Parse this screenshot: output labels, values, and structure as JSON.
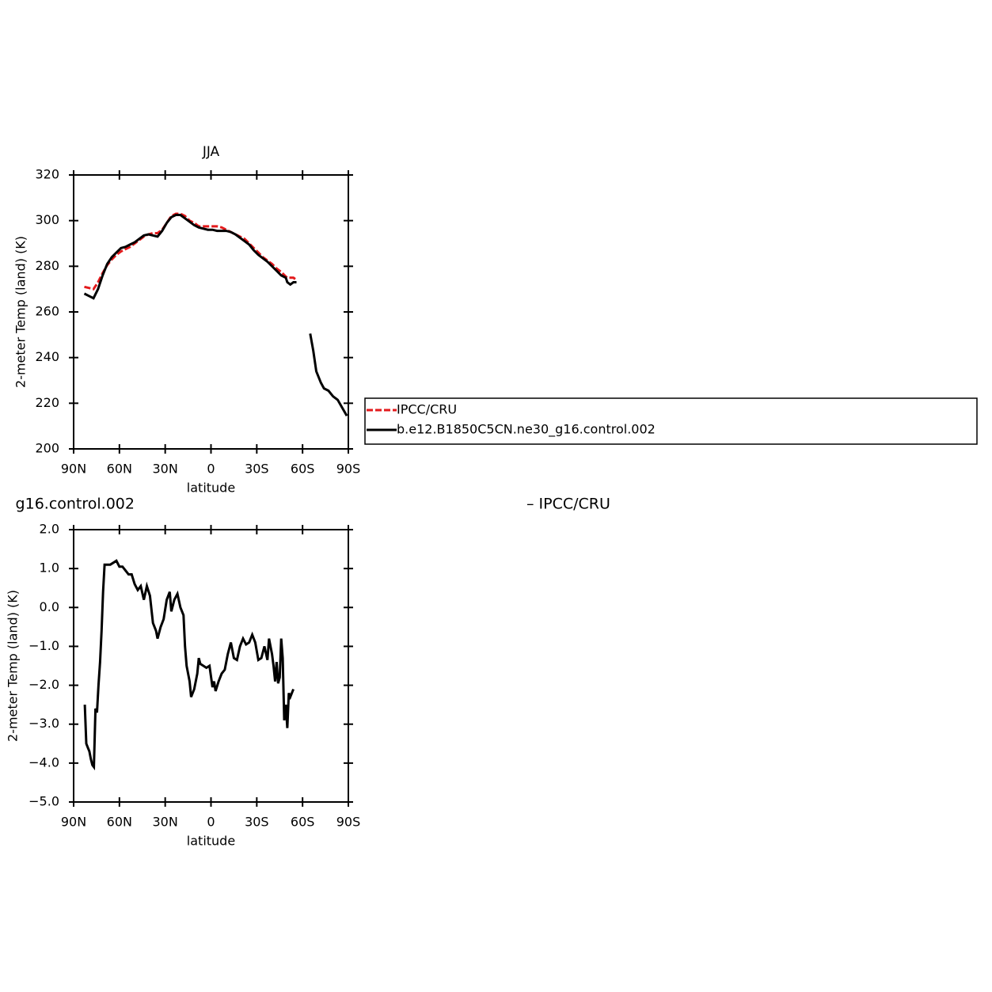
{
  "chart_data": [
    {
      "type": "line",
      "title": "JJA",
      "x_label": "latitude",
      "y_label": "2-meter Temp (land) (K)",
      "x": [
        83,
        80,
        77,
        74,
        71,
        68,
        65,
        62,
        59,
        56,
        53,
        50,
        47,
        44,
        41,
        38,
        35,
        32,
        29,
        26,
        23,
        20,
        17,
        14,
        11,
        8,
        5,
        2,
        -1,
        -4,
        -7,
        -10,
        -13,
        -16,
        -19,
        -22,
        -25,
        -28,
        -31,
        -34,
        -37,
        -40,
        -43,
        -46,
        -49,
        -50,
        -52,
        -54,
        -56,
        -60,
        -65,
        -67,
        -69,
        -72,
        -74,
        -77,
        -80,
        -83,
        -86,
        -89
      ],
      "series": [
        {
          "name": "IPCC/CRU",
          "color": "#e31a1c",
          "style": "dashed",
          "values": [
            271,
            270.5,
            270,
            273,
            277,
            280.5,
            283,
            285,
            286.5,
            287.5,
            288.5,
            290,
            291.5,
            293,
            294,
            294.5,
            294.5,
            296,
            299,
            302,
            303,
            303,
            302,
            300,
            299,
            297.5,
            297.5,
            297.5,
            297.5,
            297.5,
            297,
            296,
            295,
            294,
            293,
            292,
            290,
            288,
            286,
            284,
            282.5,
            281,
            279,
            277.5,
            275.5,
            275,
            275,
            275,
            274,
            null,
            null,
            null,
            null,
            null,
            null,
            null,
            null,
            null,
            null,
            null
          ]
        },
        {
          "name": "b.e12.B1850C5CN.ne30_g16.control.002",
          "color": "#000000",
          "style": "solid",
          "values": [
            268,
            267,
            266,
            270,
            276,
            281,
            284,
            286,
            288,
            288.5,
            289.5,
            290.5,
            292,
            293.5,
            294,
            293.5,
            293,
            295.5,
            299,
            301.5,
            302.5,
            302.5,
            301,
            299.5,
            298,
            297,
            296.5,
            296,
            296,
            295.5,
            295.5,
            295.5,
            295,
            294,
            292.5,
            291,
            289.5,
            287,
            285,
            283.5,
            282,
            280,
            278,
            276,
            275,
            273,
            272,
            273,
            273,
            null,
            250.5,
            243,
            234,
            229,
            226.5,
            225.5,
            223,
            221.5,
            218,
            214.5
          ]
        }
      ],
      "xlim": [
        90,
        -90
      ],
      "xticks": [
        {
          "value": 90,
          "label": "90N"
        },
        {
          "value": 60,
          "label": "60N"
        },
        {
          "value": 30,
          "label": "30N"
        },
        0,
        {
          "value": -30,
          "label": "30S"
        },
        {
          "value": -60,
          "label": "60S"
        },
        {
          "value": -90,
          "label": "90S"
        }
      ],
      "ylim": [
        200,
        320
      ],
      "yticks": [
        200,
        220,
        240,
        260,
        280,
        300,
        320
      ],
      "legend": "right"
    },
    {
      "type": "line",
      "title_left": "g16.control.002",
      "title_right": "– IPCC/CRU",
      "x_label": "latitude",
      "y_label": "2-meter Temp (land) (K)",
      "x": [
        82.7,
        81.7,
        80.7,
        79.7,
        78.7,
        77.7,
        76.7,
        75.7,
        74.7,
        73.7,
        72.7,
        71.7,
        70.7,
        69.7,
        68,
        66,
        64,
        62,
        60,
        58,
        56,
        54,
        52,
        50,
        48,
        46,
        44,
        42,
        40,
        38,
        36,
        35,
        33,
        31,
        29,
        27,
        26,
        24,
        22,
        20,
        18,
        17,
        16,
        14,
        13,
        11,
        9,
        8,
        7,
        5,
        3,
        1,
        -1,
        -2,
        -3,
        -5,
        -7,
        -9,
        -11,
        -13,
        -15,
        -17,
        -19,
        -21,
        -23,
        -25,
        -27,
        -29,
        -31,
        -33,
        -35,
        -37,
        -38,
        -40,
        -41,
        -42,
        -43,
        -44,
        -45,
        -46,
        -47,
        -48,
        -49,
        -50,
        -51,
        -52,
        -54
      ],
      "values": [
        -2.5,
        -3.5,
        -3.6,
        -3.7,
        -3.9,
        -4.05,
        -4.1,
        -2.6,
        -2.7,
        -2.0,
        -1.4,
        -0.6,
        0.4,
        1.1,
        1.1,
        1.1,
        1.15,
        1.2,
        1.05,
        1.05,
        0.95,
        0.85,
        0.85,
        0.6,
        0.45,
        0.55,
        0.2,
        0.55,
        0.3,
        -0.4,
        -0.6,
        -0.8,
        -0.5,
        -0.3,
        0.2,
        0.4,
        -0.1,
        0.2,
        0.35,
        0.0,
        -0.2,
        -1.0,
        -1.5,
        -1.9,
        -2.3,
        -2.1,
        -1.7,
        -1.3,
        -1.45,
        -1.5,
        -1.55,
        -1.5,
        -2.05,
        -1.9,
        -2.15,
        -1.9,
        -1.7,
        -1.6,
        -1.2,
        -0.9,
        -1.3,
        -1.35,
        -1.0,
        -0.8,
        -0.95,
        -0.9,
        -0.7,
        -0.9,
        -1.35,
        -1.3,
        -1.0,
        -1.35,
        -0.8,
        -1.2,
        -1.5,
        -1.9,
        -1.4,
        -1.95,
        -1.8,
        -0.8,
        -1.3,
        -2.9,
        -2.5,
        -3.1,
        -2.2,
        -2.3,
        -2.1
      ],
      "color": "#000000",
      "xlim": [
        90,
        -90
      ],
      "xticks": [
        {
          "value": 90,
          "label": "90N"
        },
        {
          "value": 60,
          "label": "60N"
        },
        {
          "value": 30,
          "label": "30N"
        },
        0,
        {
          "value": -30,
          "label": "30S"
        },
        {
          "value": -60,
          "label": "60S"
        },
        {
          "value": -90,
          "label": "90S"
        }
      ],
      "ylim": [
        -5,
        2
      ],
      "yticks": [
        {
          "value": -5,
          "label": "−5.0"
        },
        {
          "value": -4,
          "label": "−4.0"
        },
        {
          "value": -3,
          "label": "−3.0"
        },
        {
          "value": -2,
          "label": "−2.0"
        },
        {
          "value": -1,
          "label": "−1.0"
        },
        {
          "value": 0,
          "label": "0.0"
        },
        {
          "value": 1,
          "label": "1.0"
        },
        {
          "value": 2,
          "label": "2.0"
        }
      ]
    }
  ]
}
